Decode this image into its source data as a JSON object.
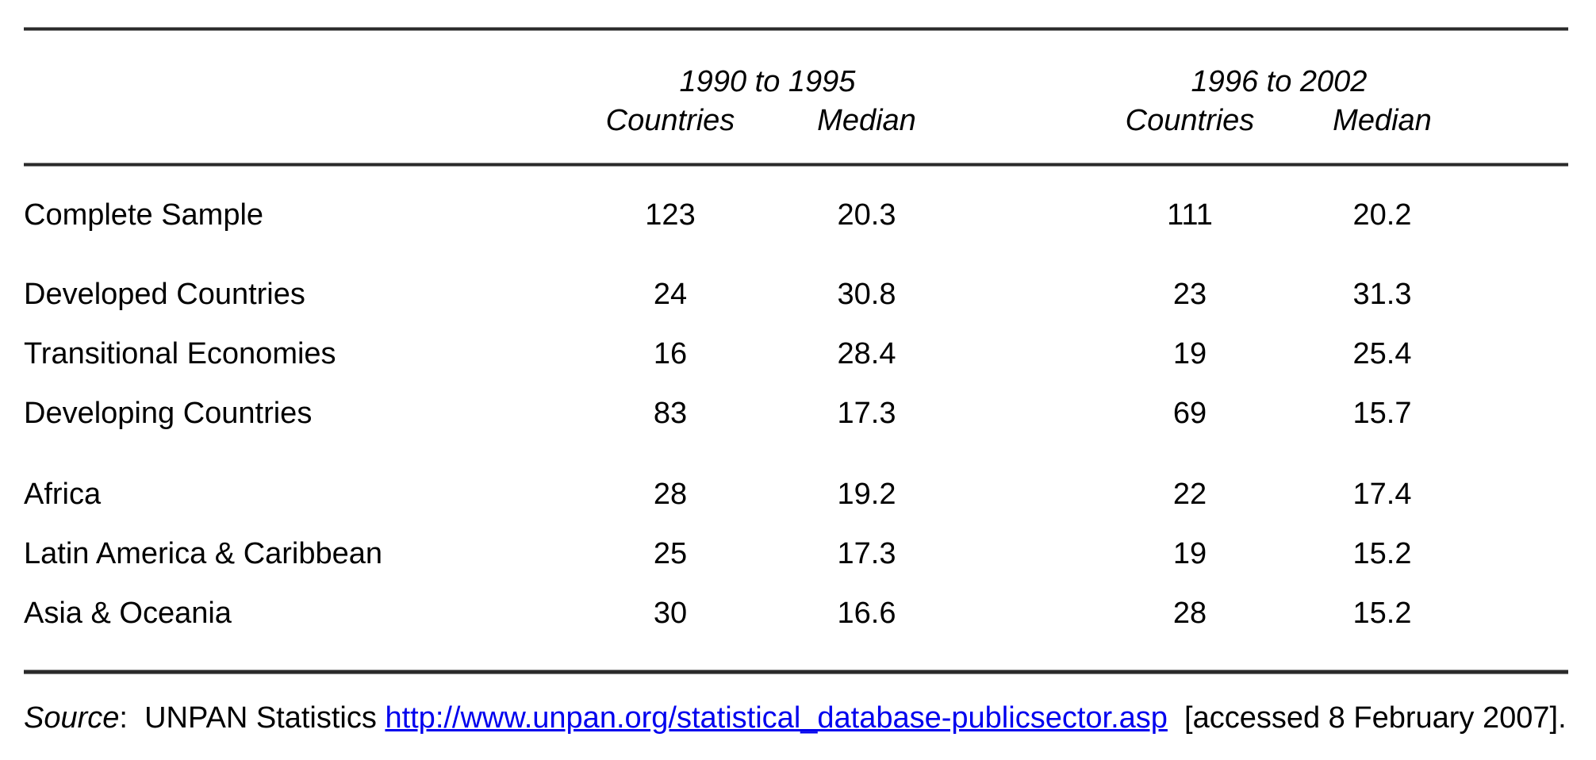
{
  "page": {
    "background": "#ffffff",
    "text_color": "#000000",
    "rule_color": "#2a2a2a",
    "link_color": "#0000ee"
  },
  "table": {
    "groups": [
      {
        "title": "1990 to 1995",
        "countries_label": "Countries",
        "median_label": "Median"
      },
      {
        "title": "1996 to 2002",
        "countries_label": "Countries",
        "median_label": "Median"
      }
    ],
    "rows": [
      {
        "label": "Complete Sample",
        "g1_countries": "123",
        "g1_median": "20.3",
        "g2_countries": "111",
        "g2_median": "20.2"
      },
      {
        "label": "Developed Countries",
        "g1_countries": "24",
        "g1_median": "30.8",
        "g2_countries": "23",
        "g2_median": "31.3"
      },
      {
        "label": "Transitional Economies",
        "g1_countries": "16",
        "g1_median": "28.4",
        "g2_countries": "19",
        "g2_median": "25.4"
      },
      {
        "label": "Developing Countries",
        "g1_countries": "83",
        "g1_median": "17.3",
        "g2_countries": "69",
        "g2_median": "15.7"
      },
      {
        "label": "Africa",
        "g1_countries": "28",
        "g1_median": "19.2",
        "g2_countries": "22",
        "g2_median": "17.4"
      },
      {
        "label": "Latin America & Caribbean",
        "g1_countries": "25",
        "g1_median": "17.3",
        "g2_countries": "19",
        "g2_median": "15.2"
      },
      {
        "label": "Asia & Oceania",
        "g1_countries": "30",
        "g1_median": "16.6",
        "g2_countries": "28",
        "g2_median": "15.2"
      }
    ]
  },
  "source": {
    "label": "Source",
    "text_before_link": ":  UNPAN Statistics ",
    "link_text": "http://www.unpan.org/statistical_database-publicsector.asp",
    "text_after_link": "  [accessed 8 February 2007]."
  }
}
